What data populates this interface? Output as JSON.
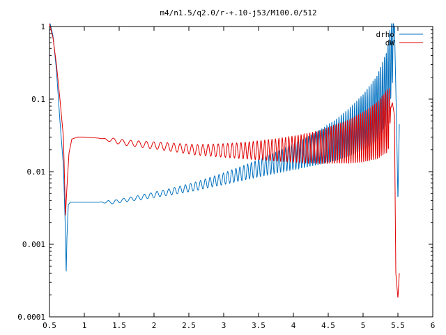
{
  "chart_data": {
    "type": "line",
    "title": "m4/n1.5/q2.0/r-+.10-j53/M100.0/512",
    "xlabel": "",
    "ylabel": "",
    "xlim": [
      0.5,
      6
    ],
    "ylim": [
      0.0001,
      1
    ],
    "y_scale": "log",
    "grid": false,
    "legend_position": "top-right",
    "x_ticks": [
      "0.5",
      "1",
      "1.5",
      "2",
      "2.5",
      "3",
      "3.5",
      "4",
      "4.5",
      "5",
      "5.5",
      "6"
    ],
    "y_ticks": [
      "0.0001",
      "0.001",
      "0.01",
      "0.1",
      "1"
    ],
    "series": [
      {
        "name": "drho",
        "color": "#0070c0",
        "x": [
          0.5,
          0.55,
          0.6,
          0.65,
          0.7,
          0.725,
          0.74,
          0.75,
          0.77,
          0.8,
          0.85,
          0.9,
          1.0,
          1.2,
          1.4,
          1.6,
          1.8,
          2.0,
          2.2,
          2.4,
          2.6,
          2.8,
          3.0,
          3.2,
          3.4,
          3.6,
          3.8,
          4.0,
          4.2,
          4.4,
          4.6,
          4.8,
          5.0,
          5.2,
          5.35,
          5.42,
          5.45,
          5.48,
          5.5,
          5.52
        ],
        "y": [
          1.2,
          0.75,
          0.25,
          0.05,
          0.012,
          0.002,
          0.0004,
          0.0012,
          0.0035,
          0.0038,
          0.0038,
          0.0038,
          0.0038,
          0.0038,
          0.0038,
          0.0041,
          0.0044,
          0.0048,
          0.0052,
          0.0057,
          0.0063,
          0.0071,
          0.008,
          0.0091,
          0.0104,
          0.012,
          0.0138,
          0.016,
          0.0187,
          0.0222,
          0.027,
          0.035,
          0.048,
          0.075,
          0.15,
          0.5,
          1.1,
          0.05,
          0.004,
          0.045
        ]
      },
      {
        "name": "dW",
        "color": "#e00000",
        "x": [
          0.5,
          0.55,
          0.6,
          0.65,
          0.7,
          0.73,
          0.75,
          0.78,
          0.82,
          0.9,
          1.0,
          1.2,
          1.4,
          1.6,
          1.8,
          2.0,
          2.2,
          2.4,
          2.6,
          2.8,
          3.0,
          3.2,
          3.4,
          3.6,
          3.8,
          4.0,
          4.2,
          4.4,
          4.6,
          4.8,
          5.0,
          5.2,
          5.35,
          5.42,
          5.45,
          5.47,
          5.5,
          5.52
        ],
        "y": [
          1.1,
          0.7,
          0.3,
          0.1,
          0.03,
          0.0025,
          0.006,
          0.018,
          0.028,
          0.03,
          0.03,
          0.029,
          0.027,
          0.025,
          0.024,
          0.023,
          0.022,
          0.021,
          0.02,
          0.0198,
          0.0196,
          0.0195,
          0.0196,
          0.0198,
          0.02,
          0.0205,
          0.021,
          0.022,
          0.024,
          0.026,
          0.03,
          0.037,
          0.05,
          0.09,
          0.06,
          0.0004,
          0.00018,
          0.0004
        ]
      }
    ],
    "oscillations": [
      {
        "series": 0,
        "start": 1.2,
        "end": 5.45,
        "period_start": 0.12,
        "period_end": 0.025,
        "amp_start": 0.02,
        "amp_end": 0.55
      },
      {
        "series": 1,
        "start": 1.25,
        "end": 5.4,
        "period_start": 0.14,
        "period_end": 0.025,
        "amp_start": 0.03,
        "amp_end": 0.45
      }
    ]
  }
}
